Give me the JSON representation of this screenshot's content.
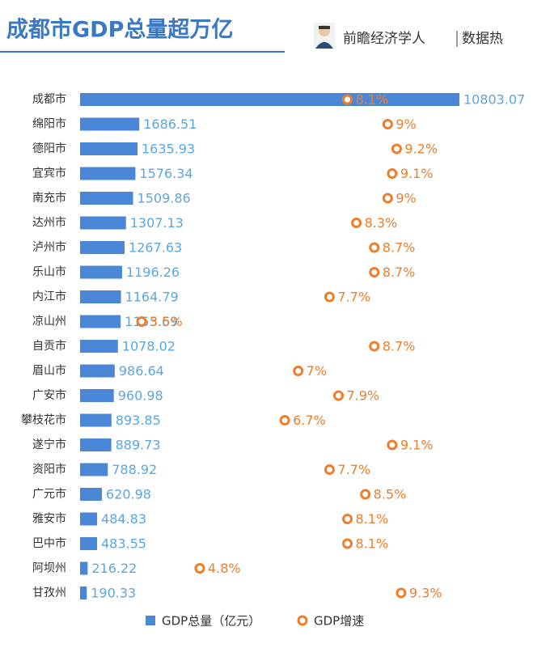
{
  "chart_data": {
    "type": "bar",
    "title": "成都市GDP总量超万亿",
    "source": "前瞻经济学人",
    "source_tag": "数据热",
    "categories": [
      "成都市",
      "绵阳市",
      "德阳市",
      "宜宾市",
      "南充市",
      "达州市",
      "泸州市",
      "乐山市",
      "内江市",
      "凉山州",
      "自贡市",
      "眉山市",
      "广安市",
      "攀枝花市",
      "遂宁市",
      "资阳市",
      "广元市",
      "雅安市",
      "巴中市",
      "阿坝州",
      "甘孜州"
    ],
    "xlim": [
      0,
      11000
    ],
    "x2lim": [
      2,
      11
    ],
    "series": [
      {
        "name": "GDP总量（亿元）",
        "type": "bar",
        "color": "#4a87d6",
        "label_color": "#5ba6e2",
        "values": [
          10803.07,
          1686.51,
          1635.93,
          1576.34,
          1509.86,
          1307.13,
          1267.63,
          1196.26,
          1164.79,
          1155.69,
          1078.02,
          986.64,
          960.98,
          893.85,
          889.73,
          788.92,
          620.98,
          484.83,
          483.55,
          216.22,
          190.33
        ]
      },
      {
        "name": "GDP增速",
        "type": "scatter",
        "axis": "x2",
        "color": "#ef7d2b",
        "values": [
          8.1,
          9,
          9.2,
          9.1,
          9,
          8.3,
          8.7,
          8.7,
          7.7,
          3.5,
          8.7,
          7,
          7.9,
          6.7,
          9.1,
          7.7,
          8.5,
          8.1,
          8.1,
          4.8,
          9.3
        ],
        "value_labels": [
          "8.1%",
          "9%",
          "9.2%",
          "9.1%",
          "9%",
          "8.3%",
          "8.7%",
          "8.7%",
          "7.7%",
          "3.5%",
          "8.7%",
          "7%",
          "7.9%",
          "6.7%",
          "9.1%",
          "7.7%",
          "8.5%",
          "8.1%",
          "8.1%",
          "4.8%",
          "9.3%"
        ]
      }
    ]
  }
}
